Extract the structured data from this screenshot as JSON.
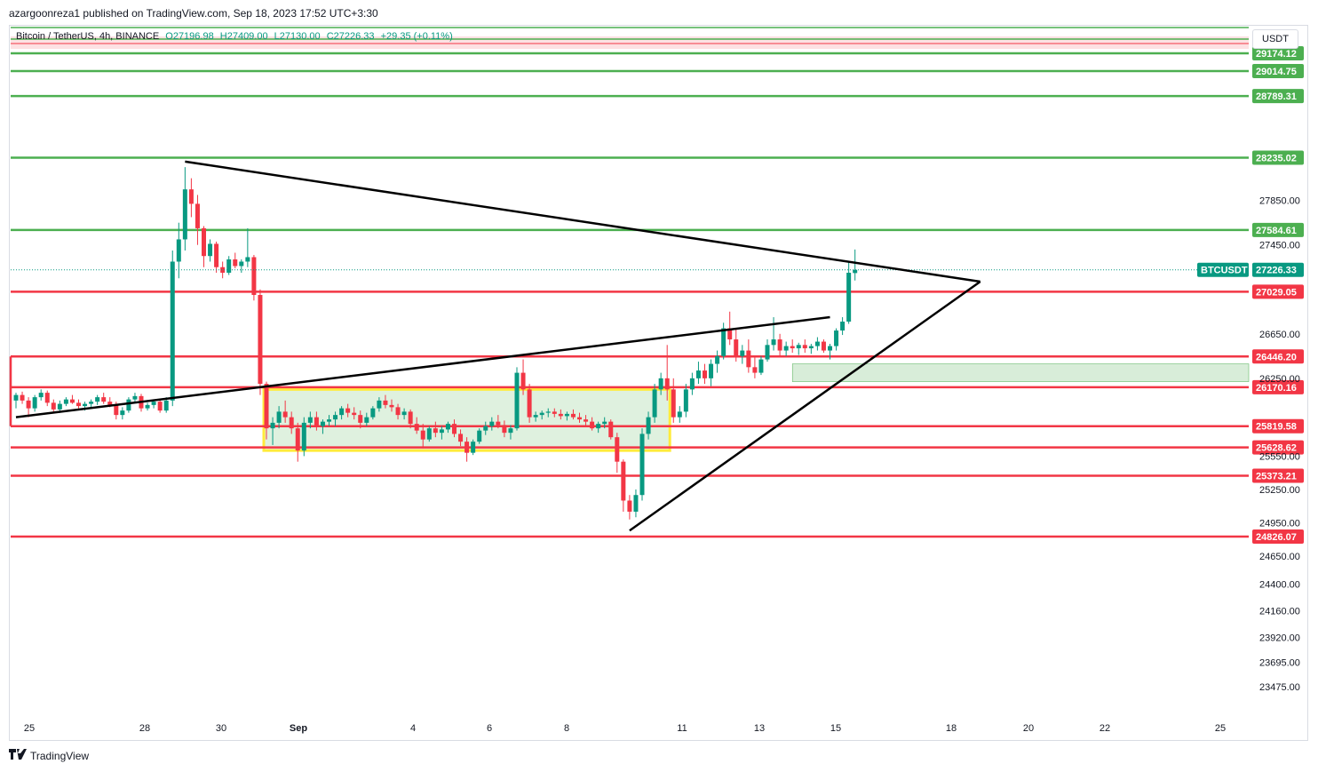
{
  "header": {
    "published_by": "azargoonreza1 published on TradingView.com, Sep 18, 2023 17:52 UTC+3:30"
  },
  "legend": {
    "symbol": "Bitcoin / TetherUS, 4h, BINANCE",
    "open": "O27196.98",
    "high": "H27409.00",
    "low": "L27130.00",
    "close": "C27226.33",
    "change": "+29.35 (+0.11%)"
  },
  "currency": "USDT",
  "footer": {
    "brand": "TradingView",
    "logo_icon": "tradingview-logo-icon"
  },
  "colors": {
    "up": "#089981",
    "down": "#f23645",
    "support": "#4caf50",
    "resistance": "#f23645",
    "range_box": "#ffeb3b"
  },
  "chart_data": {
    "type": "candlestick",
    "symbol": "BTCUSDT",
    "interval": "4h",
    "last_price": 27226.33,
    "last_price_label": "BTCUSDT",
    "ylim": [
      23300,
      29500
    ],
    "y_ticks": [
      27850.0,
      27450.0,
      26650.0,
      26250.0,
      25550.0,
      25250.0,
      24950.0,
      24650.0,
      24400.0,
      24160.0,
      23920.0,
      23695.0,
      23475.0
    ],
    "x_ticks": [
      "25",
      "28",
      "30",
      "Sep",
      "4",
      "6",
      "8",
      "11",
      "13",
      "15",
      "18",
      "20",
      "22",
      "25"
    ],
    "horizontal_levels": [
      {
        "price": 29174.12,
        "color": "support"
      },
      {
        "price": 29014.75,
        "color": "support"
      },
      {
        "price": 28789.31,
        "color": "support"
      },
      {
        "price": 28235.02,
        "color": "support"
      },
      {
        "price": 27584.61,
        "color": "support"
      },
      {
        "price": 27029.05,
        "color": "resistance"
      },
      {
        "price": 26446.2,
        "color": "resistance"
      },
      {
        "price": 26170.16,
        "color": "resistance"
      },
      {
        "price": 25819.58,
        "color": "resistance"
      },
      {
        "price": 25628.62,
        "color": "resistance"
      },
      {
        "price": 25373.21,
        "color": "resistance"
      },
      {
        "price": 24826.07,
        "color": "resistance"
      }
    ],
    "candles": [
      [
        26050,
        26120,
        25980,
        26100
      ],
      [
        26100,
        26130,
        26020,
        26050
      ],
      [
        26050,
        26080,
        25900,
        25980
      ],
      [
        25980,
        26100,
        25950,
        26080
      ],
      [
        26080,
        26150,
        26050,
        26120
      ],
      [
        26120,
        26140,
        26000,
        26030
      ],
      [
        26030,
        26060,
        25950,
        25970
      ],
      [
        25970,
        26050,
        25940,
        26020
      ],
      [
        26020,
        26080,
        26000,
        26060
      ],
      [
        26060,
        26100,
        26020,
        26030
      ],
      [
        26030,
        26060,
        25980,
        26000
      ],
      [
        26000,
        26040,
        25960,
        26020
      ],
      [
        26020,
        26060,
        25990,
        26040
      ],
      [
        26040,
        26100,
        26010,
        26080
      ],
      [
        26080,
        26120,
        26020,
        26040
      ],
      [
        26040,
        26080,
        25990,
        26010
      ],
      [
        26010,
        26040,
        25880,
        25920
      ],
      [
        25920,
        25990,
        25880,
        25960
      ],
      [
        25960,
        26080,
        25940,
        26060
      ],
      [
        26060,
        26120,
        26030,
        26090
      ],
      [
        26090,
        26110,
        25950,
        25980
      ],
      [
        25980,
        26030,
        25960,
        26010
      ],
      [
        26010,
        26060,
        25980,
        26040
      ],
      [
        26040,
        26060,
        25940,
        25960
      ],
      [
        25960,
        26080,
        25940,
        26050
      ],
      [
        26050,
        27400,
        26000,
        27300
      ],
      [
        27300,
        27650,
        27150,
        27500
      ],
      [
        27500,
        28150,
        27400,
        27950
      ],
      [
        27950,
        28050,
        27700,
        27820
      ],
      [
        27820,
        27900,
        27450,
        27600
      ],
      [
        27600,
        27620,
        27250,
        27350
      ],
      [
        27350,
        27500,
        27300,
        27460
      ],
      [
        27460,
        27480,
        27200,
        27250
      ],
      [
        27250,
        27300,
        27150,
        27200
      ],
      [
        27200,
        27350,
        27180,
        27320
      ],
      [
        27320,
        27380,
        27240,
        27260
      ],
      [
        27260,
        27320,
        27200,
        27300
      ],
      [
        27300,
        27600,
        27250,
        27340
      ],
      [
        27340,
        27360,
        26950,
        27000
      ],
      [
        27000,
        27050,
        26100,
        26200
      ],
      [
        26200,
        26220,
        25700,
        25800
      ],
      [
        25800,
        25900,
        25650,
        25850
      ],
      [
        25850,
        26000,
        25800,
        25950
      ],
      [
        25950,
        26050,
        25850,
        25900
      ],
      [
        25900,
        25950,
        25750,
        25800
      ],
      [
        25800,
        25850,
        25500,
        25600
      ],
      [
        25600,
        25900,
        25550,
        25850
      ],
      [
        25850,
        25950,
        25800,
        25900
      ],
      [
        25900,
        25950,
        25780,
        25820
      ],
      [
        25820,
        25880,
        25750,
        25860
      ],
      [
        25860,
        25920,
        25820,
        25880
      ],
      [
        25880,
        25950,
        25820,
        25920
      ],
      [
        25920,
        26000,
        25880,
        25980
      ],
      [
        25980,
        26020,
        25900,
        25940
      ],
      [
        25940,
        25990,
        25880,
        25920
      ],
      [
        25920,
        25960,
        25800,
        25850
      ],
      [
        25850,
        25940,
        25820,
        25900
      ],
      [
        25900,
        26000,
        25880,
        25980
      ],
      [
        25980,
        26080,
        25950,
        26050
      ],
      [
        26050,
        26100,
        25980,
        26010
      ],
      [
        26010,
        26060,
        25950,
        25990
      ],
      [
        25990,
        26020,
        25880,
        25920
      ],
      [
        25920,
        25980,
        25880,
        25950
      ],
      [
        25950,
        25970,
        25800,
        25840
      ],
      [
        25840,
        25900,
        25750,
        25780
      ],
      [
        25780,
        25840,
        25620,
        25700
      ],
      [
        25700,
        25820,
        25680,
        25800
      ],
      [
        25800,
        25860,
        25720,
        25760
      ],
      [
        25760,
        25820,
        25700,
        25790
      ],
      [
        25790,
        25860,
        25760,
        25840
      ],
      [
        25840,
        25880,
        25720,
        25750
      ],
      [
        25750,
        25790,
        25640,
        25680
      ],
      [
        25680,
        25720,
        25500,
        25580
      ],
      [
        25580,
        25700,
        25560,
        25680
      ],
      [
        25680,
        25800,
        25660,
        25780
      ],
      [
        25780,
        25860,
        25740,
        25820
      ],
      [
        25820,
        25900,
        25780,
        25860
      ],
      [
        25860,
        25920,
        25800,
        25830
      ],
      [
        25830,
        25870,
        25720,
        25760
      ],
      [
        25760,
        25830,
        25700,
        25800
      ],
      [
        25800,
        26350,
        25780,
        26300
      ],
      [
        26300,
        26420,
        26100,
        26150
      ],
      [
        26150,
        26200,
        25850,
        25900
      ],
      [
        25900,
        25950,
        25860,
        25920
      ],
      [
        25920,
        25960,
        25880,
        25940
      ],
      [
        25940,
        25980,
        25900,
        25950
      ],
      [
        25950,
        25980,
        25900,
        25930
      ],
      [
        25930,
        25970,
        25880,
        25910
      ],
      [
        25910,
        25950,
        25870,
        25930
      ],
      [
        25930,
        25970,
        25880,
        25900
      ],
      [
        25900,
        25940,
        25850,
        25880
      ],
      [
        25880,
        25920,
        25820,
        25860
      ],
      [
        25860,
        25900,
        25780,
        25800
      ],
      [
        25800,
        25860,
        25760,
        25840
      ],
      [
        25840,
        25900,
        25800,
        25860
      ],
      [
        25860,
        25880,
        25700,
        25720
      ],
      [
        25720,
        25760,
        25400,
        25500
      ],
      [
        25500,
        25520,
        25050,
        25150
      ],
      [
        25150,
        25200,
        24980,
        25050
      ],
      [
        25050,
        25250,
        25000,
        25200
      ],
      [
        25200,
        25800,
        25150,
        25750
      ],
      [
        25750,
        25950,
        25700,
        25900
      ],
      [
        25900,
        26200,
        25850,
        26150
      ],
      [
        26150,
        26300,
        26100,
        26250
      ],
      [
        26250,
        26550,
        26050,
        26150
      ],
      [
        26150,
        26250,
        25850,
        25900
      ],
      [
        25900,
        26000,
        25850,
        25950
      ],
      [
        25950,
        26200,
        25900,
        26150
      ],
      [
        26150,
        26300,
        26100,
        26250
      ],
      [
        26250,
        26400,
        26200,
        26320
      ],
      [
        26320,
        26380,
        26200,
        26250
      ],
      [
        26250,
        26420,
        26180,
        26380
      ],
      [
        26380,
        26500,
        26300,
        26450
      ],
      [
        26450,
        26750,
        26420,
        26700
      ],
      [
        26700,
        26850,
        26550,
        26600
      ],
      [
        26600,
        26700,
        26400,
        26450
      ],
      [
        26450,
        26550,
        26380,
        26500
      ],
      [
        26500,
        26600,
        26300,
        26350
      ],
      [
        26350,
        26450,
        26250,
        26300
      ],
      [
        26300,
        26450,
        26280,
        26420
      ],
      [
        26420,
        26600,
        26400,
        26550
      ],
      [
        26550,
        26800,
        26500,
        26600
      ],
      [
        26600,
        26650,
        26450,
        26500
      ],
      [
        26500,
        26580,
        26450,
        26540
      ],
      [
        26540,
        26600,
        26480,
        26520
      ],
      [
        26520,
        26570,
        26460,
        26550
      ],
      [
        26550,
        26600,
        26480,
        26520
      ],
      [
        26520,
        26560,
        26470,
        26540
      ],
      [
        26540,
        26620,
        26500,
        26580
      ],
      [
        26580,
        26600,
        26480,
        26500
      ],
      [
        26500,
        26560,
        26420,
        26540
      ],
      [
        26540,
        26700,
        26500,
        26680
      ],
      [
        26680,
        26800,
        26640,
        26760
      ],
      [
        26760,
        27300,
        26740,
        27200
      ],
      [
        27196.98,
        27409.0,
        27130.0,
        27226.33
      ]
    ],
    "range_box": {
      "from_candle": 40,
      "to_candle": 104,
      "low": 25600,
      "high": 26150
    },
    "green_zone": {
      "from_candle": 124,
      "low": 26220,
      "high": 26380
    },
    "trendlines": [
      {
        "from": [
          0,
          25900
        ],
        "to": [
          130,
          26800
        ]
      },
      {
        "from": [
          27,
          28200
        ],
        "to": [
          154,
          27120
        ]
      },
      {
        "from": [
          98,
          24880
        ],
        "to": [
          154,
          27120
        ]
      }
    ]
  }
}
